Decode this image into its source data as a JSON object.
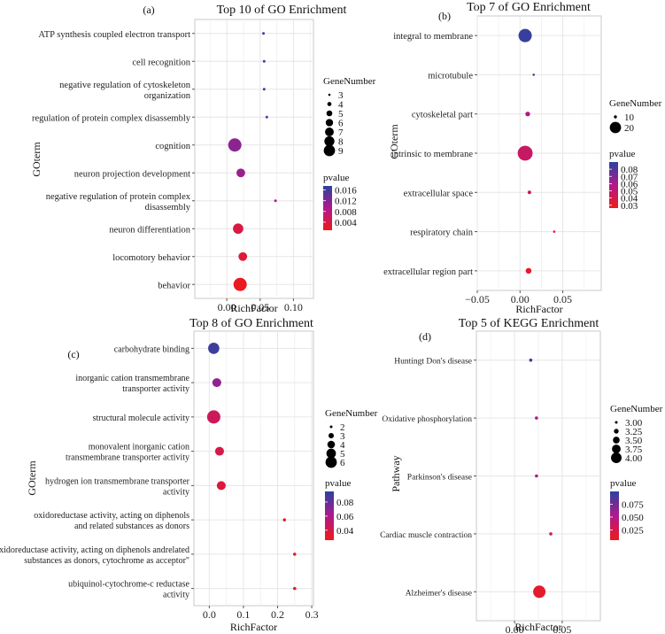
{
  "chart_data": [
    {
      "panel_label": "(a)",
      "type": "scatter",
      "title": "Top 10 of GO Enrichment",
      "xlabel": "RichFactor",
      "ylabel": "GOterm",
      "xlim": [
        -0.048,
        0.13
      ],
      "xticks": [
        0.0,
        0.05,
        0.1
      ],
      "xtick_labels": [
        "0.00",
        "0.05",
        "0.10"
      ],
      "grid": true,
      "categories": [
        "ATP synthesis coupled electron transport",
        "cell recognition",
        "negative regulation of cytoskeleton\norganization",
        "regulation of protein complex disassembly",
        "cognition",
        "neuron projection development",
        "negative regulation of protein complex\ndisassembly",
        "neuron differentiation",
        "locomotory behavior",
        "behavior"
      ],
      "x": [
        0.055,
        0.056,
        0.056,
        0.06,
        0.012,
        0.021,
        0.073,
        0.017,
        0.024,
        0.02
      ],
      "size": [
        3,
        3,
        3,
        3,
        9,
        6,
        3,
        7,
        6,
        9
      ],
      "pvalue": [
        0.0165,
        0.0165,
        0.0165,
        0.014,
        0.0115,
        0.0105,
        0.009,
        0.004,
        0.003,
        0.0015
      ],
      "size_legend": {
        "title": "GeneNumber",
        "values": [
          3,
          4,
          5,
          6,
          7,
          8,
          9
        ],
        "labels": [
          "3",
          "4",
          "5",
          "6",
          "7",
          "8",
          "9"
        ]
      },
      "color_legend": {
        "title": "pvalue",
        "range": [
          0.001,
          0.0175
        ],
        "ticks": [
          0.016,
          0.012,
          0.008,
          0.004
        ],
        "labels": [
          "0.016",
          "0.012",
          "0.008",
          "0.004"
        ],
        "low_color": "#ee1a1a",
        "high_color": "#2a43a0"
      },
      "legend_position": "right"
    },
    {
      "panel_label": "(b)",
      "type": "scatter",
      "title": "Top 7 of GO Enrichment",
      "xlabel": "RichFactor",
      "ylabel": "GOterm",
      "xlim": [
        -0.05,
        0.095
      ],
      "xticks": [
        -0.05,
        0.0,
        0.05
      ],
      "xtick_labels": [
        "−0.05",
        "0.00",
        "0.05"
      ],
      "grid": true,
      "categories": [
        "integral to membrane",
        "microtubule",
        "cytoskeletal part",
        "intrinsic to membrane",
        "extracellular space",
        "respiratory chain",
        "extracellular region part"
      ],
      "x": [
        0.006,
        0.016,
        0.009,
        0.006,
        0.011,
        0.04,
        0.01
      ],
      "size": [
        20,
        8,
        11,
        22,
        10,
        4,
        12
      ],
      "pvalue": [
        0.087,
        0.076,
        0.056,
        0.046,
        0.042,
        0.034,
        0.03
      ],
      "size_legend": {
        "title": "GeneNumber",
        "values": [
          10,
          20
        ],
        "labels": [
          "10",
          "20"
        ]
      },
      "color_legend": {
        "title": "pvalue",
        "range": [
          0.026,
          0.09
        ],
        "ticks": [
          0.08,
          0.07,
          0.06,
          0.05,
          0.04,
          0.03
        ],
        "labels": [
          "0.08",
          "0.07",
          "0.06",
          "0.05",
          "0.04",
          "0.03"
        ],
        "low_color": "#ee1a1a",
        "high_color": "#2a43a0"
      },
      "legend_position": "right"
    },
    {
      "panel_label": "(c)",
      "type": "scatter",
      "title": "Top 8 of GO Enrichment",
      "xlabel": "RichFactor",
      "ylabel": "GOterm",
      "xlim": [
        -0.045,
        0.305
      ],
      "xticks": [
        0.0,
        0.1,
        0.2,
        0.3
      ],
      "xtick_labels": [
        "0.0",
        "0.1",
        "0.2",
        "0.3"
      ],
      "grid": true,
      "categories": [
        "carbohydrate binding",
        "inorganic cation transmembrane\ntransporter activity",
        "structural molecule activity",
        "monovalent inorganic cation\ntransmembrane transporter activity",
        "hydrogen ion transmembrane transporter\nactivity",
        "oxidoreductase activity, acting on diphenols\nand related substances as donors",
        "oxidoreductase activity, acting on diphenols andrelated\nsubstances as donors, cytochrome as acceptor\"",
        "ubiquinol-cytochrome-c reductase\nactivity"
      ],
      "x": [
        0.013,
        0.022,
        0.013,
        0.03,
        0.035,
        0.22,
        0.25,
        0.25
      ],
      "size": [
        5,
        4,
        6,
        4,
        4,
        2,
        2,
        2
      ],
      "pvalue": [
        0.09,
        0.068,
        0.045,
        0.04,
        0.036,
        0.03,
        0.03,
        0.03
      ],
      "size_legend": {
        "title": "GeneNumber",
        "values": [
          2,
          3,
          4,
          5,
          6
        ],
        "labels": [
          "2",
          "3",
          "4",
          "5",
          "6"
        ]
      },
      "color_legend": {
        "title": "pvalue",
        "range": [
          0.026,
          0.095
        ],
        "ticks": [
          0.08,
          0.06,
          0.04
        ],
        "labels": [
          "0.08",
          "0.06",
          "0.04"
        ],
        "low_color": "#ee1a1a",
        "high_color": "#2a43a0"
      },
      "legend_position": "right"
    },
    {
      "panel_label": "(d)",
      "type": "scatter",
      "title": "Top 5 of KEGG Enrichment",
      "xlabel": "RichFactor",
      "ylabel": "Pathway",
      "xlim": [
        -0.04,
        0.09
      ],
      "xticks": [
        0.0,
        0.05
      ],
      "xtick_labels": [
        "0.00",
        "0.05"
      ],
      "grid": true,
      "categories": [
        "Huntingt Don's disease",
        "Oxidative phosphorylation",
        "Parkinson's disease",
        "Cardiac muscle contraction",
        "Alzheimer's disease"
      ],
      "x": [
        0.017,
        0.023,
        0.023,
        0.038,
        0.026
      ],
      "size": [
        3,
        3,
        3,
        3,
        4
      ],
      "pvalue": [
        0.092,
        0.052,
        0.052,
        0.028,
        0.012
      ],
      "size_legend": {
        "title": "GeneNumber",
        "values": [
          3.0,
          3.25,
          3.5,
          3.75,
          4.0
        ],
        "labels": [
          "3.00",
          "3.25",
          "3.50",
          "3.75",
          "4.00"
        ]
      },
      "color_legend": {
        "title": "pvalue",
        "range": [
          0.005,
          0.1
        ],
        "ticks": [
          0.075,
          0.05,
          0.025
        ],
        "labels": [
          "0.075",
          "0.050",
          "0.025"
        ],
        "low_color": "#ee1a1a",
        "high_color": "#2a43a0"
      },
      "legend_position": "right"
    }
  ]
}
